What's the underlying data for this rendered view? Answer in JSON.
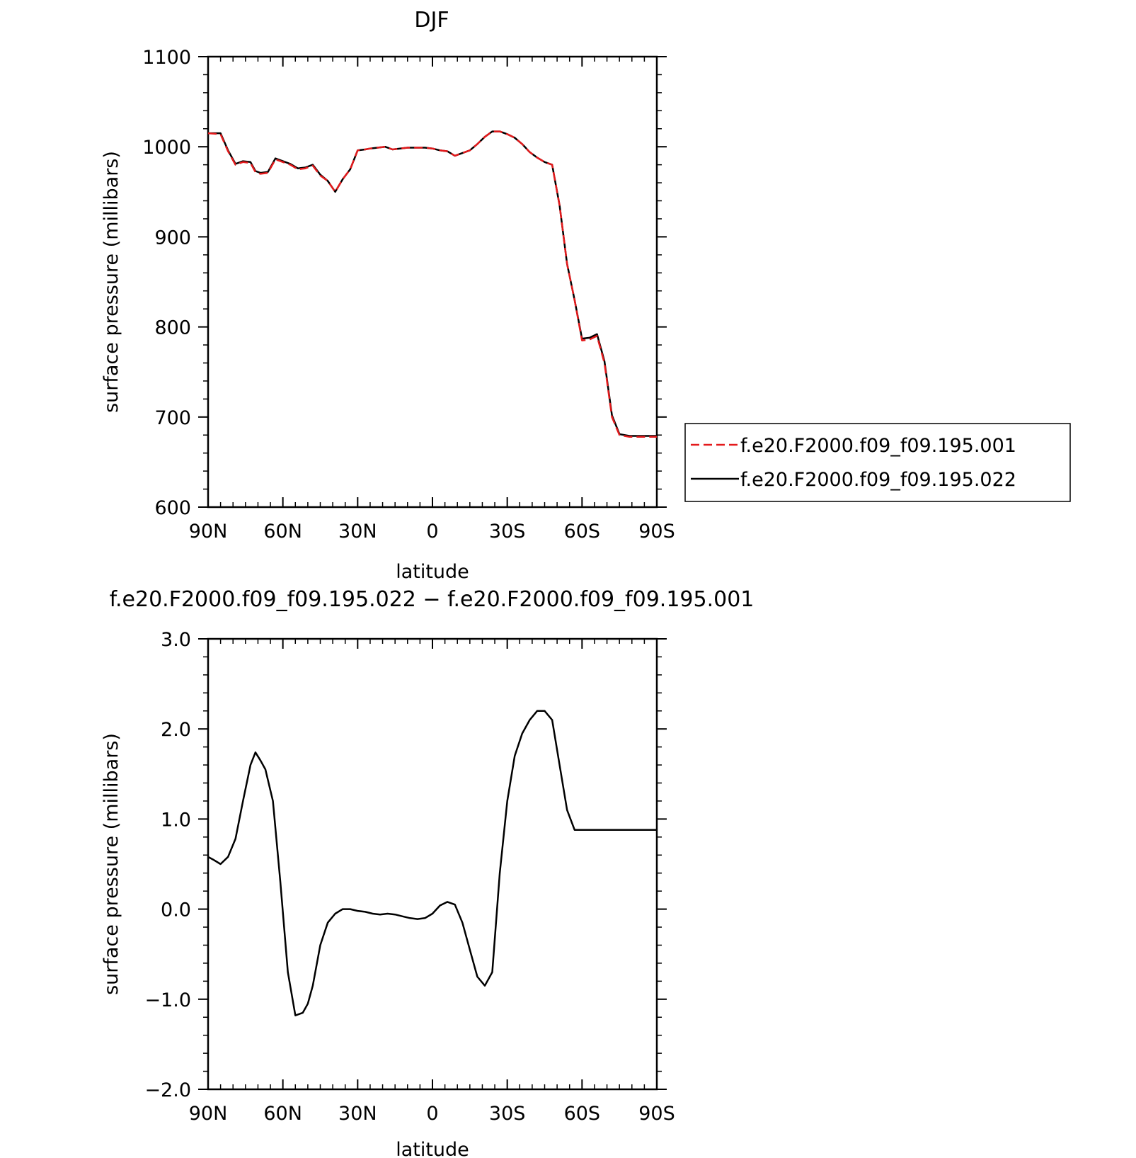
{
  "chart_data": [
    {
      "type": "line",
      "title": "DJF",
      "xlabel": "latitude",
      "ylabel": "surface pressure (millibars)",
      "xlim": [
        90,
        -90
      ],
      "ylim": [
        600,
        1100
      ],
      "xticks": [
        90,
        60,
        30,
        0,
        -30,
        -60,
        -90
      ],
      "xtick_labels": [
        "90N",
        "60N",
        "30N",
        "0",
        "30S",
        "60S",
        "90S"
      ],
      "yticks": [
        600,
        700,
        800,
        900,
        1000,
        1100
      ],
      "ytick_labels": [
        "600",
        "700",
        "800",
        "900",
        "1000",
        "1100"
      ],
      "legend_placement": "right",
      "series": [
        {
          "name": "f.e20.F2000.f09_f09.195.001",
          "color": "#e41a1c",
          "style": "dashed",
          "x": [
            90,
            85,
            82,
            79,
            76,
            73,
            71,
            69,
            66,
            63,
            60,
            57,
            54,
            51,
            48,
            45,
            42,
            39,
            36,
            33,
            30,
            27,
            25,
            22,
            19,
            16,
            13,
            10,
            6,
            3,
            0,
            -3,
            -6,
            -9,
            -12,
            -15,
            -18,
            -21,
            -24,
            -27,
            -30,
            -33,
            -36,
            -39,
            -42,
            -45,
            -48,
            -51,
            -54,
            -57,
            -60,
            -63,
            -66,
            -69,
            -72,
            -75,
            -77,
            -79,
            -81,
            -83,
            -85,
            -87,
            -89,
            -90
          ],
          "y": [
            1015,
            1014,
            995,
            980,
            983,
            982,
            972,
            970,
            971,
            986,
            983,
            980,
            975,
            976,
            979,
            968,
            962,
            950,
            964,
            975,
            996,
            997,
            998,
            999,
            1000,
            997,
            998,
            999,
            999,
            999,
            998,
            996,
            995,
            990,
            993,
            996,
            1003,
            1011,
            1017,
            1017,
            1014,
            1010,
            1003,
            994,
            988,
            983,
            980,
            935,
            870,
            830,
            785,
            786,
            790,
            760,
            700,
            680,
            679,
            678,
            678,
            678,
            678,
            678,
            678,
            678
          ]
        },
        {
          "name": "f.e20.F2000.f09_f09.195.022",
          "color": "#000000",
          "style": "solid",
          "x": [
            90,
            85,
            82,
            79,
            76,
            73,
            71,
            69,
            66,
            63,
            60,
            57,
            54,
            51,
            48,
            45,
            42,
            39,
            36,
            33,
            30,
            27,
            25,
            22,
            19,
            16,
            13,
            10,
            6,
            3,
            0,
            -3,
            -6,
            -9,
            -12,
            -15,
            -18,
            -21,
            -24,
            -27,
            -30,
            -33,
            -36,
            -39,
            -42,
            -45,
            -48,
            -51,
            -54,
            -57,
            -60,
            -63,
            -66,
            -69,
            -72,
            -75,
            -77,
            -79,
            -81,
            -83,
            -85,
            -87,
            -89,
            -90
          ],
          "y": [
            1015,
            1015,
            996,
            981,
            984,
            983,
            973,
            971,
            972,
            987,
            984,
            981,
            976,
            977,
            980,
            969,
            962,
            950,
            964,
            975,
            996,
            997,
            998,
            999,
            1000,
            997,
            998,
            999,
            999,
            999,
            998,
            996,
            995,
            990,
            993,
            996,
            1003,
            1011,
            1017,
            1017,
            1014,
            1010,
            1003,
            994,
            988,
            983,
            980,
            935,
            870,
            830,
            787,
            788,
            792,
            762,
            702,
            681,
            680,
            679,
            679,
            679,
            679,
            679,
            679,
            679
          ]
        }
      ]
    },
    {
      "type": "line",
      "title": "f.e20.F2000.f09_f09.195.022 − f.e20.F2000.f09_f09.195.001",
      "xlabel": "latitude",
      "ylabel": "surface pressure (millibars)",
      "xlim": [
        90,
        -90
      ],
      "ylim": [
        -2.0,
        3.0
      ],
      "xticks": [
        90,
        60,
        30,
        0,
        -30,
        -60,
        -90
      ],
      "xtick_labels": [
        "90N",
        "60N",
        "30N",
        "0",
        "30S",
        "60S",
        "90S"
      ],
      "yticks": [
        -2.0,
        -1.0,
        0.0,
        1.0,
        2.0,
        3.0
      ],
      "ytick_labels": [
        "−2.0",
        "−1.0",
        "0.0",
        "1.0",
        "2.0",
        "3.0"
      ],
      "series": [
        {
          "color": "#000000",
          "style": "solid",
          "x": [
            90,
            88,
            85,
            82,
            79,
            76,
            73,
            71,
            69,
            67,
            64,
            61,
            58,
            55,
            52,
            50,
            48,
            45,
            42,
            39,
            36,
            33,
            30,
            27,
            24,
            21,
            18,
            15,
            12,
            9,
            6,
            3,
            0,
            -3,
            -6,
            -9,
            -12,
            -15,
            -18,
            -21,
            -24,
            -27,
            -30,
            -33,
            -36,
            -39,
            -42,
            -45,
            -48,
            -51,
            -54,
            -57,
            -60,
            -63,
            -66,
            -69,
            -72,
            -75,
            -77,
            -79,
            -81,
            -83,
            -85,
            -87,
            -89,
            -90
          ],
          "y": [
            0.58,
            0.55,
            0.5,
            0.58,
            0.78,
            1.2,
            1.6,
            1.74,
            1.65,
            1.55,
            1.2,
            0.3,
            -0.7,
            -1.18,
            -1.15,
            -1.05,
            -0.85,
            -0.4,
            -0.15,
            -0.05,
            0.0,
            0.0,
            -0.02,
            -0.03,
            -0.05,
            -0.06,
            -0.05,
            -0.06,
            -0.08,
            -0.1,
            -0.11,
            -0.1,
            -0.05,
            0.04,
            0.08,
            0.05,
            -0.15,
            -0.45,
            -0.75,
            -0.85,
            -0.7,
            0.4,
            1.2,
            1.7,
            1.95,
            2.1,
            2.2,
            2.2,
            2.1,
            1.6,
            1.1,
            0.88,
            0.88,
            0.88,
            0.88,
            0.88,
            0.88,
            0.88,
            0.88,
            0.88,
            0.88,
            0.88,
            0.88,
            0.88,
            0.88,
            0.88
          ]
        }
      ]
    }
  ]
}
